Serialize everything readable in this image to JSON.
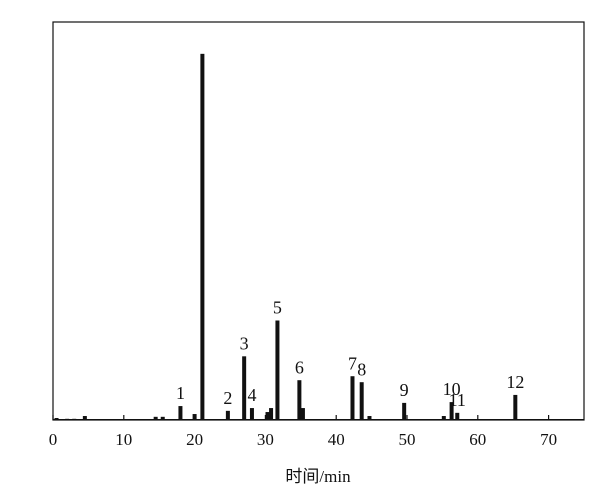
{
  "chart_data": {
    "type": "bar",
    "x_label": "时间/min",
    "x": [
      0.5,
      2,
      3,
      4.5,
      14.5,
      15.5,
      18.0,
      20.0,
      21.1,
      24.7,
      27.0,
      28.1,
      30.3,
      30.8,
      31.7,
      34.8,
      35.3,
      42.3,
      43.6,
      44.7,
      49.6,
      55.2,
      56.3,
      57.1,
      65.3
    ],
    "values": [
      0.5,
      0.3,
      0.3,
      1,
      0.8,
      0.8,
      3.5,
      1.5,
      92,
      2.3,
      16,
      3,
      2,
      3,
      25,
      10,
      3,
      11,
      9.5,
      1,
      4.3,
      1,
      4.5,
      1.8,
      6.3
    ],
    "labels": [
      null,
      null,
      null,
      null,
      null,
      null,
      "1",
      null,
      null,
      "2",
      "3",
      "4",
      null,
      null,
      "5",
      "6",
      null,
      "7",
      "8",
      null,
      "9",
      null,
      "10",
      "11",
      "12"
    ],
    "color": "#111111",
    "xlim": [
      0,
      75
    ],
    "xticks": [
      0,
      10,
      20,
      30,
      40,
      50,
      60,
      70
    ],
    "ylim": [
      0,
      100
    ]
  }
}
